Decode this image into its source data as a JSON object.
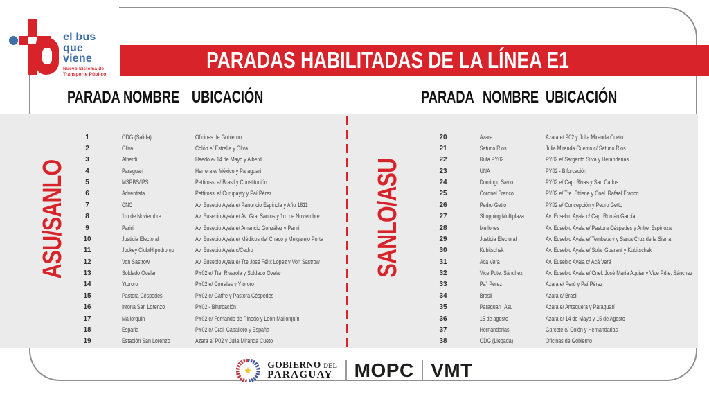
{
  "banner": {
    "title": "PARADAS HABILITADAS DE LA LÍNEA E1"
  },
  "logo": {
    "name": "el bus\nque\nviene",
    "subtitle": "Nuevo Sistema de\nTransporte Público"
  },
  "columns": [
    "PARADA",
    "NOMBRE",
    "UBICACIÓN"
  ],
  "tables": [
    {
      "direction": "ASU/SANLO",
      "rows": [
        [
          "1",
          "ODG (Salida)",
          "Oficinas de Gobierno"
        ],
        [
          "2",
          "Oliva",
          "Colón e/ Estrella y Oliva"
        ],
        [
          "3",
          "Alberdi",
          "Haedo e/ 14 de Mayo y Alberdi"
        ],
        [
          "4",
          "Paraguari",
          "Herrera e/ México y Paraguari"
        ],
        [
          "5",
          "MSPBS/IPS",
          "Pettirossi e/ Brasil y Constitución"
        ],
        [
          "6",
          "Adventista",
          "Pettirossi e/ Curupayty y Paí Pérez"
        ],
        [
          "7",
          "CNC",
          "Av. Eusebio Ayala e/ Panuncio Espinola y Año 1811"
        ],
        [
          "8",
          "1ro de Noviembre",
          "Av. Eusebio Ayala e/ Av. Gral Santos y 1ro de Noviembre"
        ],
        [
          "9",
          "Parirí",
          "Av. Eusebio Ayala e/ Amancio González y Parirí"
        ],
        [
          "10",
          "Justicia Electoral",
          "Av. Eusebio Ayala e/ Médicos del Chaco y Melgarejo Porta"
        ],
        [
          "11",
          "Jockey Club/Hipodromo",
          "Av. Eusebio Ayala c/Cedro"
        ],
        [
          "12",
          "Von Sastrow",
          "Av. Eusebio Ayala e/ Tte José Félix López y Von Sastrow"
        ],
        [
          "13",
          "Soldado Ovelar",
          "PY02 e/ Tte. Rivarola y Soldado Ovelar"
        ],
        [
          "14",
          "Ytororo",
          "PY02 e/ Corrales y Ytororo"
        ],
        [
          "15",
          "Pastora Céspedes",
          "PY02 e/ Gaffre y Pastora Céspedes"
        ],
        [
          "16",
          "Infona San Lorenzo",
          "PY02 - Bifurcación"
        ],
        [
          "17",
          "Mallorquín",
          "PY02 e/ Fernando de Pinedo y León Mallorquín"
        ],
        [
          "18",
          "España",
          "PY02 e/ Gral. Caballero y España"
        ],
        [
          "19",
          "Estación San Lorenzo",
          "Azara e/ P02 y Julia Miranda Cueto"
        ]
      ]
    },
    {
      "direction": "SANLO/ASU",
      "rows": [
        [
          "20",
          "Azara",
          "Azara e/ P02 y Julia Miranda Cueto"
        ],
        [
          "21",
          "Saturio Rios",
          "Julia Miranda Cuento c/ Saturio Rios"
        ],
        [
          "22",
          "Ruta PY02",
          "PY02 e/ Sargento Silva y Herandarias"
        ],
        [
          "23",
          "UNA",
          "PY02 - Bifurcación"
        ],
        [
          "24",
          "Domingo Savio",
          "PY02 e/ Cap. Rivas y San Carlos"
        ],
        [
          "25",
          "Coronel Franco",
          "PY02 e/ Tte. Ettiene y Cnel. Rafael Franco"
        ],
        [
          "26",
          "Pedro Getto",
          "PY02 e/ Concepción y Pedro Getto"
        ],
        [
          "27",
          "Shopping Multiplaza",
          "Av. Eusebio Ayala c/ Cap. Román García"
        ],
        [
          "28",
          "Mellones",
          "Av. Eusebio Ayala e/ Pastora Céspedes y Anbel Espinoza"
        ],
        [
          "29",
          "Justicia Electoral",
          "Av. Eusebio Ayala e/ Tembetary y Santa Cruz de la Sierra"
        ],
        [
          "30",
          "Kubitschek",
          "Av. Eusebio Ayala e/ Solar Guaraní y Kubitschek"
        ],
        [
          "31",
          "Acá Verá",
          "Av. Eusebio Ayala c/ Acá Verá"
        ],
        [
          "32",
          "Vice Pdte. Sánchez",
          "Av. Eusebio Ayala e/ Cnel. José María Aguiar y Vice Pdte. Sánchez"
        ],
        [
          "33",
          "Pa'i Pérez",
          "Azara e/ Perú y Paí Pérez"
        ],
        [
          "34",
          "Brasil",
          "Azara c/ Brasil"
        ],
        [
          "35",
          "Paraguarí_Asu",
          "Azara e/ Antequera y Paraguarí"
        ],
        [
          "36",
          "15 de agosto",
          "Azara e/ 14 de Mayo y 15 de Agosto"
        ],
        [
          "37",
          "Hernandarias",
          "Garcete e/ Colón y Hernandarias"
        ],
        [
          "38",
          "ODG (Llegada)",
          "Oficinas de Gobierno"
        ]
      ]
    }
  ],
  "footer": {
    "gobierno_word": "GOBIERNO",
    "gobierno_del": "DEL",
    "paraguay": "PARAGUAY",
    "mopc": "MOPC",
    "vmt": "VMT"
  },
  "colors": {
    "red": "#d8232a",
    "blue": "#3f6fa9",
    "panel": "#ebebeb"
  }
}
